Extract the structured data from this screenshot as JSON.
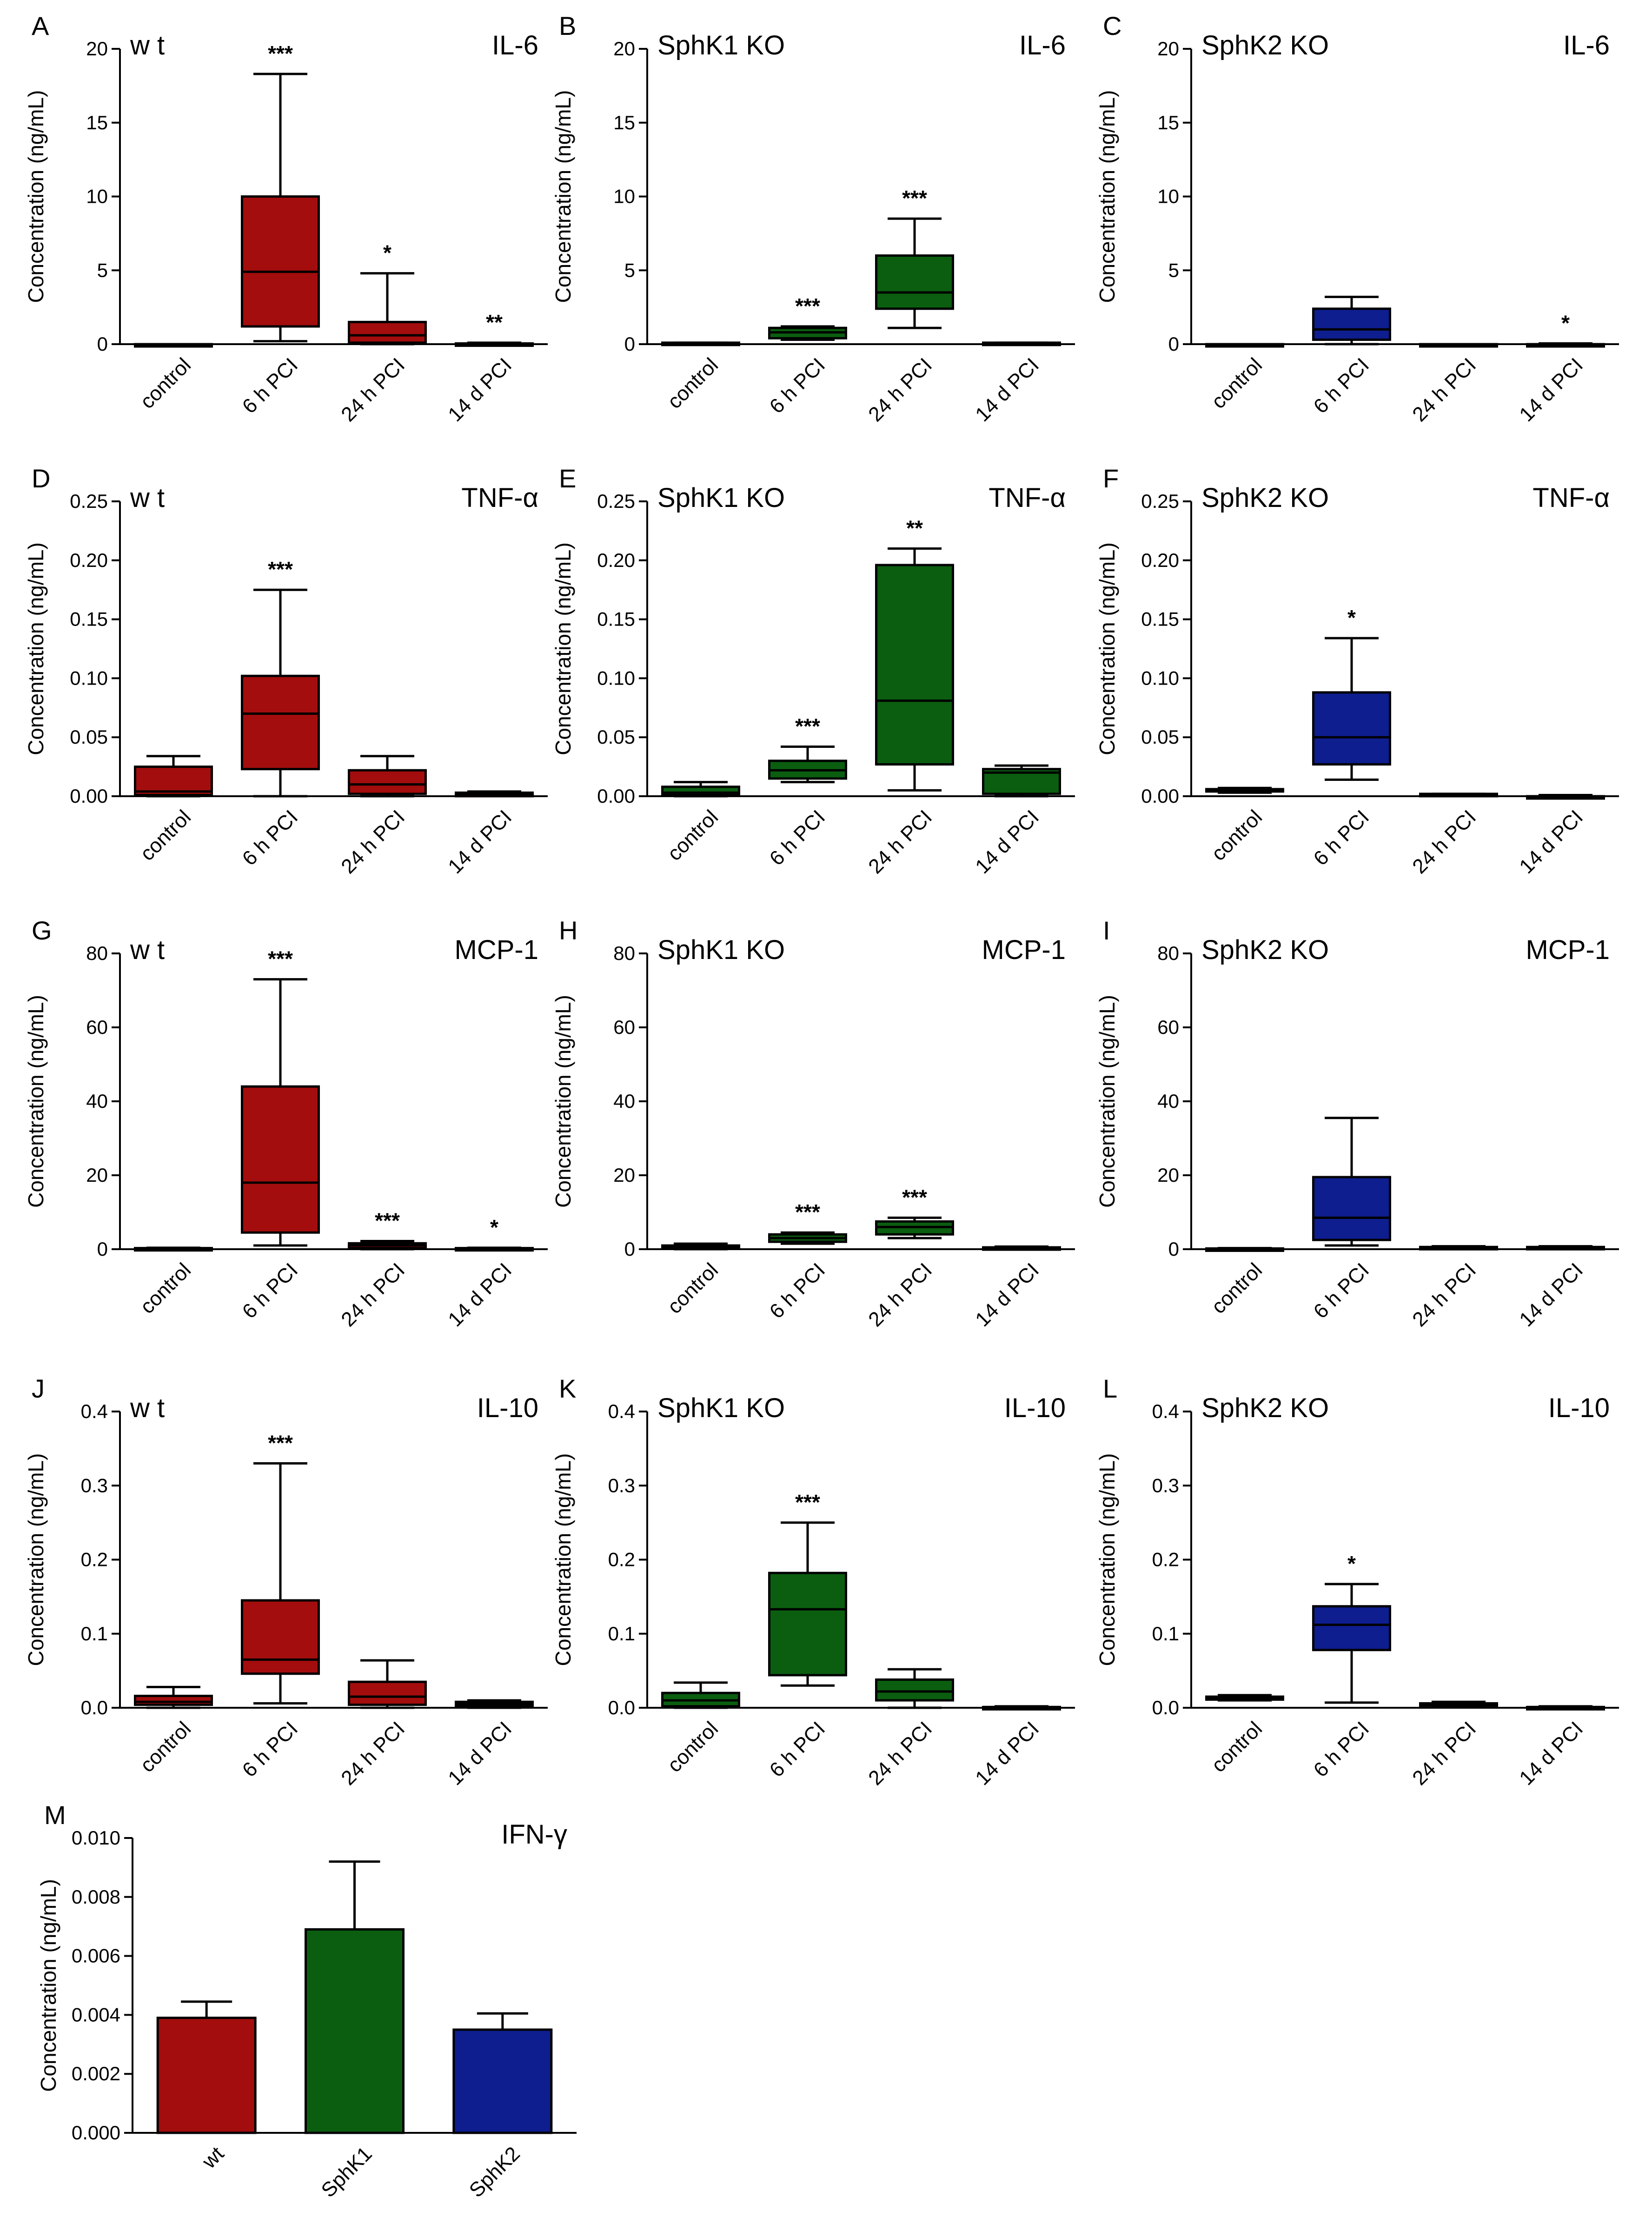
{
  "chart_data": [
    {
      "id": "A",
      "type": "boxplot",
      "group": "wt",
      "cytokine": "IL-6",
      "color": "#A30D0D",
      "title": "IL-6",
      "subtitle": "w t",
      "ylabel": "Concentration (ng/mL)",
      "ylim": [
        0,
        20
      ],
      "ticks": [
        "0",
        "5",
        "10",
        "15",
        "20"
      ],
      "categories": [
        "control",
        "6 h PCI",
        "24 h PCI",
        "14 d PCI"
      ],
      "boxes": [
        [
          0,
          0,
          0,
          0,
          0
        ],
        [
          0.2,
          1.2,
          4.9,
          10,
          18.3
        ],
        [
          0,
          0.1,
          0.6,
          1.5,
          4.8
        ],
        [
          0,
          0,
          0,
          0.05,
          0.1
        ]
      ],
      "significance": [
        "",
        "***",
        "*",
        "**"
      ]
    },
    {
      "id": "B",
      "type": "boxplot",
      "group": "SphK1 KO",
      "cytokine": "IL-6",
      "color": "#0B5E10",
      "title": "IL-6",
      "subtitle": "SphK1 KO",
      "ylabel": "Concentration (ng/mL)",
      "ylim": [
        0,
        20
      ],
      "ticks": [
        "0",
        "5",
        "10",
        "15",
        "20"
      ],
      "categories": [
        "control",
        "6 h PCI",
        "24 h PCI",
        "14 d PCI"
      ],
      "boxes": [
        [
          0,
          0,
          0.05,
          0.1,
          0.1
        ],
        [
          0.3,
          0.4,
          0.8,
          1.1,
          1.2
        ],
        [
          1.1,
          2.4,
          3.5,
          6,
          8.5
        ],
        [
          0,
          0,
          0.05,
          0.1,
          0.1
        ]
      ],
      "significance": [
        "",
        "***",
        "***",
        ""
      ]
    },
    {
      "id": "C",
      "type": "boxplot",
      "group": "SphK2 KO",
      "cytokine": "IL-6",
      "color": "#0E1E8F",
      "title": "IL-6",
      "subtitle": "SphK2 KO",
      "ylabel": "Concentration (ng/mL)",
      "ylim": [
        0,
        20
      ],
      "ticks": [
        "0",
        "5",
        "10",
        "15",
        "20"
      ],
      "categories": [
        "control",
        "6 h PCI",
        "24 h PCI",
        "14 d PCI"
      ],
      "boxes": [
        [
          0,
          0,
          0,
          0,
          0
        ],
        [
          0,
          0.3,
          1,
          2.4,
          3.2
        ],
        [
          0,
          0,
          0,
          0,
          0
        ],
        [
          0,
          0,
          0,
          0,
          0.05
        ]
      ],
      "significance": [
        "",
        "",
        "",
        "*"
      ]
    },
    {
      "id": "D",
      "type": "boxplot",
      "group": "wt",
      "cytokine": "TNF-α",
      "color": "#A30D0D",
      "title": "TNF-α",
      "subtitle": "w t",
      "ylabel": "Concentration (ng/mL)",
      "ylim": [
        0,
        0.25
      ],
      "ticks": [
        "0.00",
        "0.05",
        "0.10",
        "0.15",
        "0.20",
        "0.25"
      ],
      "categories": [
        "control",
        "6 h PCI",
        "24 h PCI",
        "14 d PCI"
      ],
      "boxes": [
        [
          0,
          0.001,
          0.004,
          0.025,
          0.034
        ],
        [
          0,
          0.023,
          0.07,
          0.102,
          0.175
        ],
        [
          0,
          0.002,
          0.01,
          0.022,
          0.034
        ],
        [
          0,
          0,
          0.002,
          0.003,
          0.004
        ]
      ],
      "significance": [
        "",
        "***",
        "",
        ""
      ]
    },
    {
      "id": "E",
      "type": "boxplot",
      "group": "SphK1 KO",
      "cytokine": "TNF-α",
      "color": "#0B5E10",
      "title": "TNF-α",
      "subtitle": "SphK1 KO",
      "ylabel": "Concentration (ng/mL)",
      "ylim": [
        0,
        0.25
      ],
      "ticks": [
        "0.00",
        "0.05",
        "0.10",
        "0.15",
        "0.20",
        "0.25"
      ],
      "categories": [
        "control",
        "6 h PCI",
        "24 h PCI",
        "14 d PCI"
      ],
      "boxes": [
        [
          0,
          0.001,
          0.003,
          0.008,
          0.012
        ],
        [
          0.012,
          0.015,
          0.022,
          0.03,
          0.042
        ],
        [
          0.005,
          0.027,
          0.081,
          0.196,
          0.21
        ],
        [
          0,
          0.002,
          0.02,
          0.023,
          0.026
        ]
      ],
      "significance": [
        "",
        "***",
        "**",
        ""
      ]
    },
    {
      "id": "F",
      "type": "boxplot",
      "group": "SphK2 KO",
      "cytokine": "TNF-α",
      "color": "#0E1E8F",
      "title": "TNF-α",
      "subtitle": "SphK2 KO",
      "ylabel": "Concentration (ng/mL)",
      "ylim": [
        0,
        0.25
      ],
      "ticks": [
        "0.00",
        "0.05",
        "0.10",
        "0.15",
        "0.20",
        "0.25"
      ],
      "categories": [
        "control",
        "6 h PCI",
        "24 h PCI",
        "14 d PCI"
      ],
      "boxes": [
        [
          0.003,
          0.004,
          0.005,
          0.006,
          0.007
        ],
        [
          0.014,
          0.027,
          0.05,
          0.088,
          0.134
        ],
        [
          0,
          0,
          0.001,
          0.002,
          0.002
        ],
        [
          0,
          0,
          0,
          0,
          0.001
        ]
      ],
      "significance": [
        "",
        "*",
        "",
        ""
      ]
    },
    {
      "id": "G",
      "type": "boxplot",
      "group": "wt",
      "cytokine": "MCP-1",
      "color": "#A30D0D",
      "title": "MCP-1",
      "subtitle": "w t",
      "ylabel": "Concentration (ng/mL)",
      "ylim": [
        0,
        80
      ],
      "ticks": [
        "0",
        "20",
        "40",
        "60",
        "80"
      ],
      "categories": [
        "control",
        "6 h PCI",
        "24 h PCI",
        "14 d PCI"
      ],
      "boxes": [
        [
          0,
          0,
          0.1,
          0.3,
          0.4
        ],
        [
          1,
          4.5,
          18,
          44,
          73
        ],
        [
          0,
          0.3,
          1,
          1.6,
          2.2
        ],
        [
          0,
          0,
          0.1,
          0.3,
          0.4
        ]
      ],
      "significance": [
        "",
        "***",
        "***",
        "*"
      ]
    },
    {
      "id": "H",
      "type": "boxplot",
      "group": "SphK1 KO",
      "cytokine": "MCP-1",
      "color": "#0B5E10",
      "title": "MCP-1",
      "subtitle": "SphK1 KO",
      "ylabel": "Concentration (ng/mL)",
      "ylim": [
        0,
        80
      ],
      "ticks": [
        "0",
        "20",
        "40",
        "60",
        "80"
      ],
      "categories": [
        "control",
        "6 h PCI",
        "24 h PCI",
        "14 d PCI"
      ],
      "boxes": [
        [
          0,
          0.2,
          0.5,
          1,
          1.5
        ],
        [
          1.5,
          2,
          3,
          4,
          4.5
        ],
        [
          3,
          4,
          6,
          7.5,
          8.5
        ],
        [
          0,
          0.1,
          0.3,
          0.5,
          0.7
        ]
      ],
      "significance": [
        "",
        "***",
        "***",
        ""
      ]
    },
    {
      "id": "I",
      "type": "boxplot",
      "group": "SphK2 KO",
      "cytokine": "MCP-1",
      "color": "#0E1E8F",
      "title": "MCP-1",
      "subtitle": "SphK2 KO",
      "ylabel": "Concentration (ng/mL)",
      "ylim": [
        0,
        80
      ],
      "ticks": [
        "0",
        "20",
        "40",
        "60",
        "80"
      ],
      "categories": [
        "control",
        "6 h PCI",
        "24 h PCI",
        "14 d PCI"
      ],
      "boxes": [
        [
          0,
          0,
          0.1,
          0.2,
          0.3
        ],
        [
          1,
          2.5,
          8.5,
          19.5,
          35.5
        ],
        [
          0,
          0.2,
          0.4,
          0.6,
          0.8
        ],
        [
          0,
          0.2,
          0.4,
          0.6,
          0.8
        ]
      ],
      "significance": [
        "",
        "",
        "",
        ""
      ]
    },
    {
      "id": "J",
      "type": "boxplot",
      "group": "wt",
      "cytokine": "IL-10",
      "color": "#A30D0D",
      "title": "IL-10",
      "subtitle": "w t",
      "ylabel": "Concentration (ng/mL)",
      "ylim": [
        0,
        0.4
      ],
      "ticks": [
        "0.0",
        "0.1",
        "0.2",
        "0.3",
        "0.4"
      ],
      "categories": [
        "control",
        "6 h PCI",
        "24 h PCI",
        "14 d PCI"
      ],
      "boxes": [
        [
          0,
          0.004,
          0.008,
          0.016,
          0.028
        ],
        [
          0.006,
          0.046,
          0.065,
          0.145,
          0.33
        ],
        [
          0,
          0.004,
          0.015,
          0.035,
          0.064
        ],
        [
          0,
          0.002,
          0.005,
          0.008,
          0.01
        ]
      ],
      "significance": [
        "",
        "***",
        "",
        ""
      ]
    },
    {
      "id": "K",
      "type": "boxplot",
      "group": "SphK1 KO",
      "cytokine": "IL-10",
      "color": "#0B5E10",
      "title": "IL-10",
      "subtitle": "SphK1 KO",
      "ylabel": "Concentration (ng/mL)",
      "ylim": [
        0,
        0.4
      ],
      "ticks": [
        "0.0",
        "0.1",
        "0.2",
        "0.3",
        "0.4"
      ],
      "categories": [
        "control",
        "6 h PCI",
        "24 h PCI",
        "14 d PCI"
      ],
      "boxes": [
        [
          0,
          0.002,
          0.01,
          0.02,
          0.034
        ],
        [
          0.03,
          0.044,
          0.133,
          0.182,
          0.25
        ],
        [
          0,
          0.01,
          0.022,
          0.038,
          0.052
        ],
        [
          0,
          0,
          0.001,
          0.001,
          0.002
        ]
      ],
      "significance": [
        "",
        "***",
        "",
        ""
      ]
    },
    {
      "id": "L",
      "type": "boxplot",
      "group": "SphK2 KO",
      "cytokine": "IL-10",
      "color": "#0E1E8F",
      "title": "IL-10",
      "subtitle": "SphK2 KO",
      "ylabel": "Concentration (ng/mL)",
      "ylim": [
        0,
        0.4
      ],
      "ticks": [
        "0.0",
        "0.1",
        "0.2",
        "0.3",
        "0.4"
      ],
      "categories": [
        "control",
        "6 h PCI",
        "24 h PCI",
        "14 d PCI"
      ],
      "boxes": [
        [
          0.01,
          0.011,
          0.013,
          0.015,
          0.017
        ],
        [
          0.007,
          0.078,
          0.112,
          0.137,
          0.167
        ],
        [
          0.002,
          0.003,
          0.004,
          0.006,
          0.008
        ],
        [
          0,
          0,
          0.001,
          0.001,
          0.002
        ]
      ],
      "significance": [
        "",
        "*",
        "",
        ""
      ]
    },
    {
      "id": "M",
      "type": "bar",
      "title": "IFN-γ",
      "ylabel": "Concentration (ng/mL)",
      "ylim": [
        0,
        0.01
      ],
      "ticks": [
        "0.000",
        "0.002",
        "0.004",
        "0.006",
        "0.008",
        "0.010"
      ],
      "categories": [
        "wt",
        "SphK1",
        "SphK2"
      ],
      "values": [
        0.0039,
        0.0069,
        0.0035
      ],
      "errors": [
        0.00055,
        0.0023,
        0.00055
      ],
      "colors": [
        "#A30D0D",
        "#0B5E10",
        "#0E1E8F"
      ]
    }
  ]
}
